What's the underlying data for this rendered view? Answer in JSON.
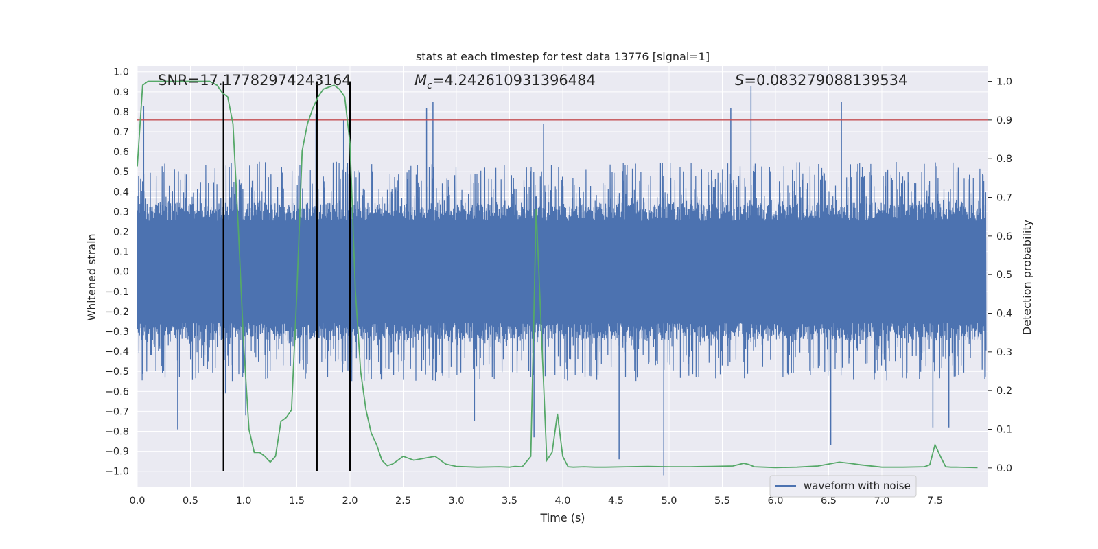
{
  "chart_data": {
    "type": "line",
    "title": "stats at each timestep for test data 13776 [signal=1]",
    "xlabel": "Time (s)",
    "ylabel_left": "Whitened strain",
    "ylabel_right": "Detection probability",
    "xlim": [
      0.0,
      8.0
    ],
    "ylim_left": [
      -1.08,
      1.03
    ],
    "ylim_right": [
      -0.05,
      1.04
    ],
    "x_ticks": [
      "0.0",
      "0.5",
      "1.0",
      "1.5",
      "2.0",
      "2.5",
      "3.0",
      "3.5",
      "4.0",
      "4.5",
      "5.0",
      "5.5",
      "6.0",
      "6.5",
      "7.0",
      "7.5"
    ],
    "x_tick_values": [
      0.0,
      0.5,
      1.0,
      1.5,
      2.0,
      2.5,
      3.0,
      3.5,
      4.0,
      4.5,
      5.0,
      5.5,
      6.0,
      6.5,
      7.0,
      7.5
    ],
    "y_left_ticks": [
      "1.0",
      "0.9",
      "0.8",
      "0.7",
      "0.6",
      "0.5",
      "0.4",
      "0.3",
      "0.2",
      "0.1",
      "0.0",
      "−0.1",
      "−0.2",
      "−0.3",
      "−0.4",
      "−0.5",
      "−0.6",
      "−0.7",
      "−0.8",
      "−0.9",
      "−1.0"
    ],
    "y_left_tick_values": [
      1.0,
      0.9,
      0.8,
      0.7,
      0.6,
      0.5,
      0.4,
      0.3,
      0.2,
      0.1,
      0.0,
      -0.1,
      -0.2,
      -0.3,
      -0.4,
      -0.5,
      -0.6,
      -0.7,
      -0.8,
      -0.9,
      -1.0
    ],
    "y_right_ticks": [
      "1.0",
      "0.9",
      "0.8",
      "0.7",
      "0.6",
      "0.5",
      "0.4",
      "0.3",
      "0.2",
      "0.1",
      "0.0"
    ],
    "y_right_tick_values": [
      1.0,
      0.9,
      0.8,
      0.7,
      0.6,
      0.5,
      0.4,
      0.3,
      0.2,
      0.1,
      0.0
    ],
    "annotations": {
      "snr": "SNR=17.17782974243164",
      "mc_symbol": "M",
      "mc_sub": "c",
      "mc_value": "=4.242610931396484",
      "s_symbol": "S",
      "s_value": "=0.083279088139534"
    },
    "legend": {
      "label": "waveform with noise",
      "placement": "lower right"
    },
    "grid": true,
    "threshold_probability": 0.9,
    "vertical_markers_time": [
      0.81,
      1.69,
      2.0
    ],
    "waveform": {
      "name": "waveform with noise",
      "color": "#4c72b0",
      "x_range": [
        0.0,
        7.98
      ],
      "core_amplitude": 0.3,
      "typical_max": 0.55,
      "spikes": [
        {
          "x": 0.06,
          "y": 0.83
        },
        {
          "x": 0.38,
          "y": -0.79
        },
        {
          "x": 0.83,
          "y": -0.61
        },
        {
          "x": 1.02,
          "y": -0.72
        },
        {
          "x": 1.68,
          "y": 0.79
        },
        {
          "x": 1.94,
          "y": 0.76
        },
        {
          "x": 2.72,
          "y": 0.82
        },
        {
          "x": 2.78,
          "y": 0.85
        },
        {
          "x": 3.17,
          "y": -0.75
        },
        {
          "x": 3.73,
          "y": -0.83
        },
        {
          "x": 3.82,
          "y": 0.74
        },
        {
          "x": 4.53,
          "y": -0.94
        },
        {
          "x": 4.95,
          "y": -1.02
        },
        {
          "x": 5.58,
          "y": 0.82
        },
        {
          "x": 5.77,
          "y": 0.93
        },
        {
          "x": 6.52,
          "y": -0.87
        },
        {
          "x": 6.62,
          "y": 0.85
        },
        {
          "x": 7.48,
          "y": -0.78
        },
        {
          "x": 7.63,
          "y": -0.78
        }
      ]
    },
    "probability": {
      "color": "#55a868",
      "x": [
        0.0,
        0.05,
        0.1,
        0.15,
        0.2,
        0.3,
        0.4,
        0.5,
        0.6,
        0.68,
        0.75,
        0.8,
        0.85,
        0.9,
        0.95,
        1.0,
        1.05,
        1.1,
        1.15,
        1.2,
        1.25,
        1.3,
        1.35,
        1.4,
        1.45,
        1.5,
        1.55,
        1.6,
        1.65,
        1.7,
        1.75,
        1.8,
        1.85,
        1.9,
        1.95,
        2.0,
        2.05,
        2.1,
        2.15,
        2.2,
        2.25,
        2.3,
        2.35,
        2.4,
        2.45,
        2.5,
        2.55,
        2.6,
        2.7,
        2.8,
        2.9,
        3.0,
        3.2,
        3.4,
        3.5,
        3.55,
        3.62,
        3.7,
        3.75,
        3.8,
        3.85,
        3.9,
        3.95,
        4.0,
        4.05,
        4.1,
        4.2,
        4.3,
        4.4,
        4.6,
        4.8,
        5.0,
        5.2,
        5.4,
        5.6,
        5.7,
        5.75,
        5.8,
        5.9,
        6.0,
        6.2,
        6.4,
        6.6,
        6.7,
        6.8,
        7.0,
        7.2,
        7.4,
        7.45,
        7.5,
        7.55,
        7.6,
        7.65,
        7.7,
        7.9
      ],
      "y": [
        0.78,
        0.99,
        1.0,
        1.0,
        1.0,
        1.0,
        1.0,
        1.0,
        1.0,
        1.0,
        0.99,
        0.97,
        0.96,
        0.89,
        0.62,
        0.32,
        0.1,
        0.04,
        0.04,
        0.03,
        0.015,
        0.03,
        0.12,
        0.13,
        0.15,
        0.45,
        0.82,
        0.89,
        0.93,
        0.96,
        0.98,
        0.985,
        0.99,
        0.98,
        0.96,
        0.84,
        0.46,
        0.25,
        0.15,
        0.09,
        0.06,
        0.02,
        0.006,
        0.01,
        0.02,
        0.03,
        0.025,
        0.02,
        0.025,
        0.03,
        0.01,
        0.004,
        0.002,
        0.003,
        0.002,
        0.004,
        0.003,
        0.03,
        0.67,
        0.35,
        0.02,
        0.04,
        0.14,
        0.03,
        0.003,
        0.002,
        0.003,
        0.002,
        0.002,
        0.003,
        0.004,
        0.003,
        0.003,
        0.004,
        0.005,
        0.012,
        0.009,
        0.003,
        0.002,
        0.001,
        0.002,
        0.005,
        0.015,
        0.012,
        0.008,
        0.002,
        0.002,
        0.003,
        0.008,
        0.06,
        0.03,
        0.003,
        0.002,
        0.002,
        0.001
      ]
    }
  },
  "colors": {
    "axes_bg": "#eaeaf2",
    "grid": "#ffffff",
    "threshold": "#c44e52",
    "marker": "#000000",
    "text": "#262626"
  }
}
